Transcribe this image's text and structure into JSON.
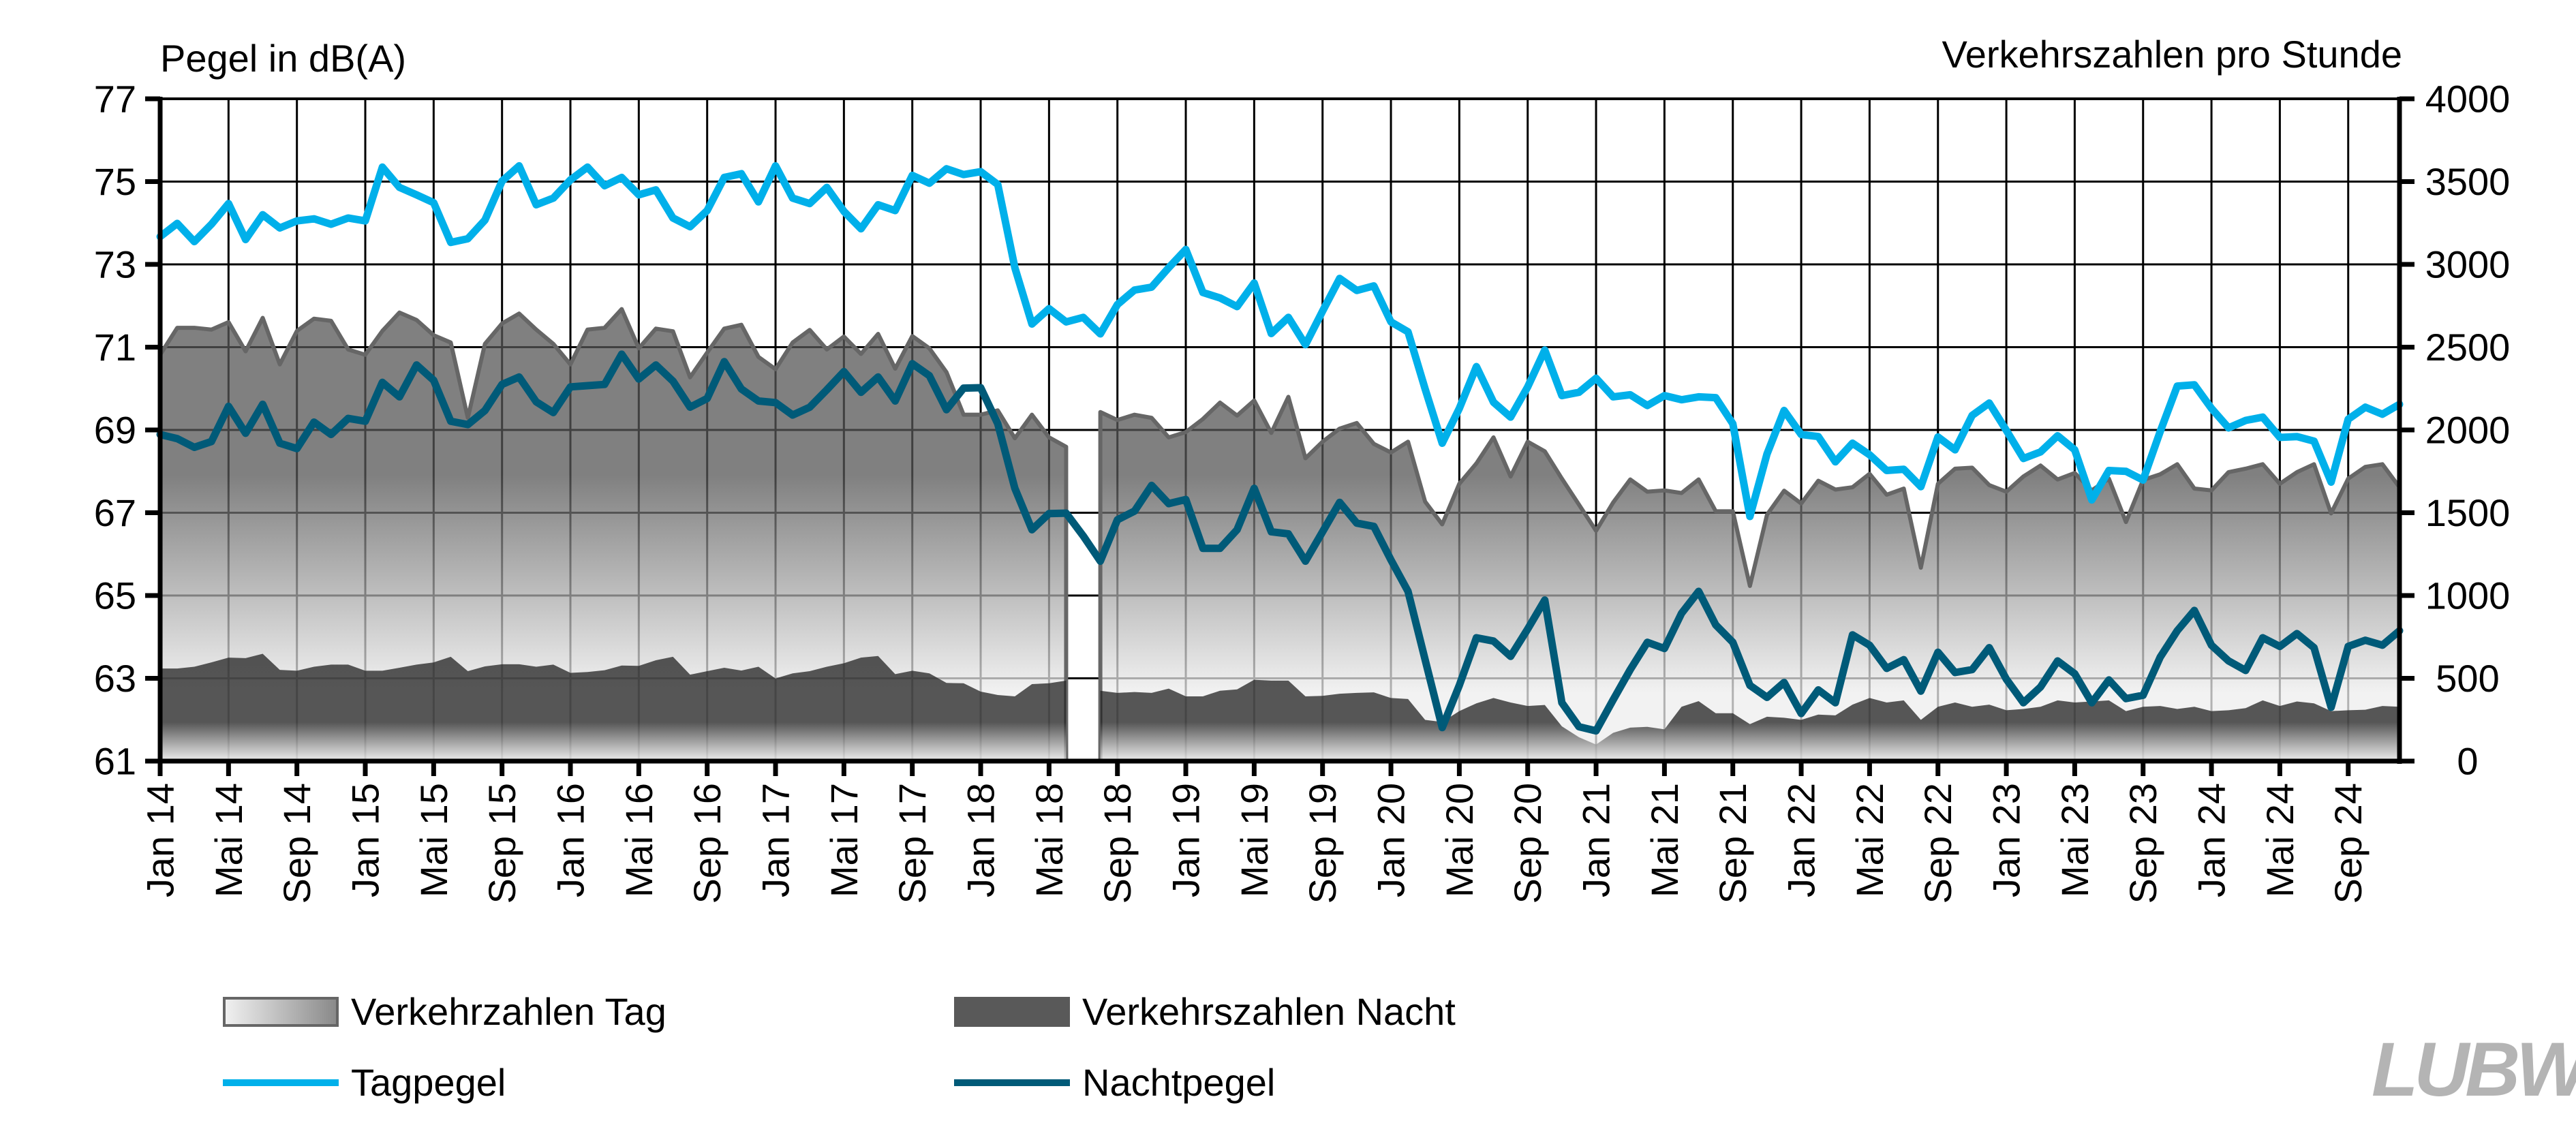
{
  "chart_data": {
    "type": "line",
    "title": "",
    "ylabel_left": "Pegel in dB(A)",
    "ylabel_right": "Verkehrszahlen pro Stunde",
    "ylim_left": [
      61,
      77
    ],
    "ylim_right": [
      0,
      4000
    ],
    "yticks_left": [
      "61",
      "63",
      "65",
      "67",
      "69",
      "71",
      "73",
      "75",
      "77"
    ],
    "yticks_right": [
      "0",
      "500",
      "1000",
      "1500",
      "2000",
      "2500",
      "3000",
      "3500",
      "4000"
    ],
    "x_start": "Jan 14",
    "x_end": "Dez 24",
    "x_unit": "month",
    "xtick_every_months": 4,
    "xticks": [
      "Jan 14",
      "Mai 14",
      "Sep 14",
      "Jan 15",
      "Mai 15",
      "Sep 15",
      "Jan 16",
      "Mai 16",
      "Sep 16",
      "Jan 17",
      "Mai 17",
      "Sep 17",
      "Jan 18",
      "Mai 18",
      "Sep 18",
      "Jan 19",
      "Mai 19",
      "Sep 19",
      "Jan 20",
      "Mai 20",
      "Sep 20",
      "Jan 21",
      "Mai 21",
      "Sep 21",
      "Jan 22",
      "Mai 22",
      "Sep 22",
      "Jan 23",
      "Mai 23",
      "Sep 23",
      "Jan 24",
      "Mai 24",
      "Sep 24"
    ],
    "grid": true,
    "legend_position": "bottom",
    "series": [
      {
        "name": "Verkehrzahlen Tag",
        "kind": "area",
        "axis": "right",
        "color": "#808080",
        "values": [
          2454,
          2617,
          2617,
          2606,
          2651,
          2475,
          2677,
          2396,
          2598,
          2672,
          2659,
          2486,
          2454,
          2598,
          2709,
          2664,
          2572,
          2528,
          2073,
          2520,
          2643,
          2703,
          2606,
          2520,
          2396,
          2606,
          2617,
          2730,
          2493,
          2612,
          2596,
          2318,
          2467,
          2612,
          2635,
          2441,
          2367,
          2528,
          2604,
          2486,
          2564,
          2459,
          2580,
          2370,
          2567,
          2493,
          2349,
          2092,
          2092,
          2118,
          1950,
          2092,
          1955,
          1898,
          null,
          2108,
          2060,
          2092,
          2073,
          1955,
          1987,
          2066,
          2165,
          2087,
          2178,
          1982,
          2200,
          1829,
          1929,
          2008,
          2042,
          1916,
          1864,
          1929,
          1567,
          1430,
          1675,
          1798,
          1955,
          1719,
          1929,
          1871,
          1706,
          1549,
          1391,
          1562,
          1701,
          1627,
          1635,
          1619,
          1701,
          1509,
          1509,
          1058,
          1488,
          1633,
          1556,
          1693,
          1640,
          1654,
          1735,
          1609,
          1646,
          1168,
          1675,
          1766,
          1772,
          1667,
          1627,
          1719,
          1785,
          1701,
          1740,
          1635,
          1706,
          1444,
          1698,
          1732,
          1793,
          1646,
          1635,
          1745,
          1766,
          1793,
          1675,
          1745,
          1793,
          1496,
          1706,
          1777,
          1793,
          1654
        ]
      },
      {
        "name": "Verkehrszahlen Nacht",
        "kind": "area",
        "axis": "right",
        "color": "#595959",
        "values": [
          559,
          559,
          570,
          596,
          625,
          622,
          648,
          551,
          546,
          570,
          583,
          583,
          546,
          546,
          564,
          583,
          596,
          630,
          543,
          572,
          585,
          585,
          570,
          583,
          533,
          538,
          549,
          577,
          575,
          609,
          630,
          522,
          543,
          564,
          547,
          570,
          499,
          530,
          543,
          570,
          591,
          625,
          635,
          525,
          546,
          530,
          472,
          470,
          420,
          399,
          391,
          465,
          470,
          486,
          null,
          425,
          412,
          417,
          412,
          438,
          391,
          391,
          425,
          433,
          491,
          486,
          486,
          391,
          394,
          407,
          412,
          415,
          381,
          375,
          249,
          236,
          302,
          349,
          381,
          354,
          333,
          339,
          210,
          144,
          100,
          171,
          202,
          207,
          192,
          328,
          362,
          289,
          289,
          223,
          268,
          262,
          249,
          281,
          276,
          341,
          381,
          354,
          367,
          249,
          328,
          354,
          328,
          341,
          307,
          315,
          328,
          367,
          354,
          360,
          367,
          302,
          328,
          333,
          315,
          328,
          302,
          307,
          320,
          367,
          333,
          360,
          349,
          302,
          307,
          310,
          333,
          328
        ]
      },
      {
        "name": "Tagpegel",
        "kind": "line",
        "axis": "left",
        "color": "#00b0ea",
        "values": [
          73.67,
          73.99,
          73.55,
          73.97,
          74.47,
          73.6,
          74.2,
          73.88,
          74.05,
          74.1,
          73.97,
          74.12,
          74.05,
          75.35,
          74.86,
          74.68,
          74.49,
          73.53,
          73.62,
          74.07,
          75.01,
          75.38,
          74.44,
          74.6,
          75.04,
          75.35,
          74.9,
          75.1,
          74.68,
          74.8,
          74.12,
          73.91,
          74.3,
          75.1,
          75.19,
          74.51,
          75.38,
          74.6,
          74.47,
          74.86,
          74.28,
          73.86,
          74.44,
          74.3,
          75.15,
          74.96,
          75.31,
          75.17,
          75.24,
          74.93,
          72.92,
          71.56,
          71.93,
          71.61,
          71.72,
          71.32,
          72.03,
          72.38,
          72.45,
          72.92,
          73.36,
          72.32,
          72.19,
          71.98,
          72.55,
          71.33,
          71.72,
          71.06,
          71.87,
          72.66,
          72.37,
          72.48,
          71.61,
          71.37,
          69.99,
          68.68,
          69.52,
          70.53,
          69.67,
          69.31,
          70.04,
          70.93,
          69.83,
          69.91,
          70.25,
          69.8,
          69.85,
          69.59,
          69.83,
          69.73,
          69.8,
          69.78,
          69.15,
          66.91,
          68.42,
          69.47,
          68.89,
          68.84,
          68.23,
          68.68,
          68.4,
          68.02,
          68.05,
          67.63,
          68.83,
          68.52,
          69.35,
          69.65,
          68.99,
          68.31,
          68.47,
          68.86,
          68.52,
          67.31,
          68.02,
          68.0,
          67.79,
          68.96,
          70.06,
          70.09,
          69.52,
          69.05,
          69.23,
          69.31,
          68.82,
          68.84,
          68.73,
          67.74,
          69.26,
          69.55,
          69.38,
          69.62
        ]
      },
      {
        "name": "Nachtpegel",
        "kind": "line",
        "axis": "left",
        "color": "#005a78",
        "values": [
          68.89,
          68.79,
          68.58,
          68.72,
          69.57,
          68.92,
          69.62,
          68.68,
          68.55,
          69.19,
          68.89,
          69.28,
          69.21,
          70.15,
          69.8,
          70.57,
          70.2,
          69.21,
          69.13,
          69.47,
          70.1,
          70.28,
          69.68,
          69.42,
          70.04,
          70.07,
          70.1,
          70.83,
          70.23,
          70.57,
          70.18,
          69.55,
          69.76,
          70.65,
          69.99,
          69.7,
          69.66,
          69.36,
          69.55,
          69.97,
          70.41,
          69.91,
          70.28,
          69.7,
          70.6,
          70.31,
          69.49,
          70.01,
          70.02,
          69.15,
          67.59,
          66.59,
          66.98,
          66.99,
          66.44,
          65.83,
          66.83,
          67.04,
          67.66,
          67.22,
          67.32,
          66.14,
          66.14,
          66.59,
          67.59,
          66.54,
          66.49,
          65.83,
          66.54,
          67.25,
          66.75,
          66.67,
          65.86,
          65.1,
          63.45,
          61.81,
          62.83,
          63.98,
          63.9,
          63.53,
          64.19,
          64.89,
          62.41,
          61.83,
          61.73,
          62.48,
          63.21,
          63.87,
          63.72,
          64.57,
          65.1,
          64.29,
          63.87,
          62.83,
          62.54,
          62.9,
          62.15,
          62.72,
          62.41,
          64.05,
          63.8,
          63.24,
          63.45,
          62.69,
          63.63,
          63.14,
          63.21,
          63.74,
          62.98,
          62.41,
          62.79,
          63.42,
          63.11,
          62.41,
          62.96,
          62.51,
          62.59,
          63.51,
          64.15,
          64.64,
          63.8,
          63.42,
          63.19,
          63.98,
          63.77,
          64.08,
          63.74,
          62.3,
          63.77,
          63.92,
          63.8,
          64.15
        ]
      }
    ]
  },
  "legend": {
    "day_traffic": "Verkehrzahlen Tag",
    "night_traffic": "Verkehrszahlen Nacht",
    "day_level": "Tagpegel",
    "night_level": "Nachtpegel"
  },
  "logo": "LUBW"
}
